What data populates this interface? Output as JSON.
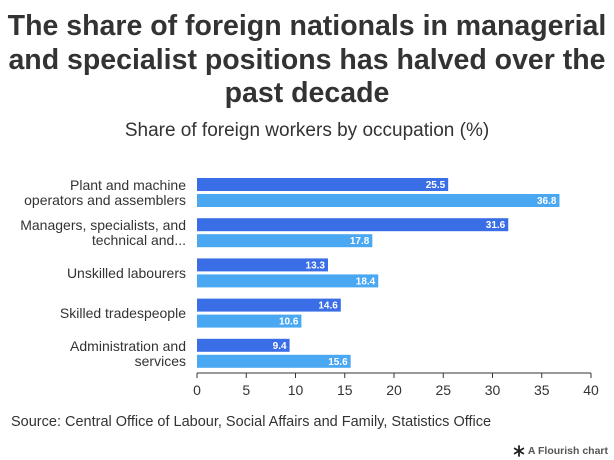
{
  "title": "The share of foreign nationals in managerial and specialist positions has halved over the past decade",
  "subtitle": "Share of foreign workers by occupation (%)",
  "source": "Source: Central Office of Labour, Social Affairs and Family, Statistics Office",
  "credit": "A Flourish chart",
  "credit_icon": "flourish-asterisk-icon",
  "colors": {
    "series1": "#3a6ee6",
    "series2": "#4aa8f2",
    "axis": "#333333",
    "label_text": "#ffffff"
  },
  "chart_data": {
    "type": "bar",
    "orientation": "horizontal",
    "categories": [
      [
        "Plant and machine",
        "operators and assemblers"
      ],
      [
        "Managers, specialists, and",
        "technical and..."
      ],
      [
        "Unskilled labourers"
      ],
      [
        "Skilled tradespeople"
      ],
      [
        "Administration and",
        "services"
      ]
    ],
    "series": [
      {
        "values": [
          25.5,
          31.6,
          13.3,
          14.6,
          9.4
        ],
        "value_labels": [
          "25.5",
          "31.6",
          "13.3",
          "14.6",
          "9.4"
        ]
      },
      {
        "values": [
          36.8,
          17.8,
          18.4,
          10.6,
          15.6
        ],
        "value_labels": [
          "36.8",
          "17.8",
          "18.4",
          "10.6",
          "15.6"
        ]
      }
    ],
    "xlim": [
      0,
      40
    ],
    "xticks": [
      "0",
      "5",
      "10",
      "15",
      "20",
      "25",
      "30",
      "35",
      "40"
    ],
    "grid": false,
    "legend": "none",
    "data_labels": "inside-end"
  }
}
